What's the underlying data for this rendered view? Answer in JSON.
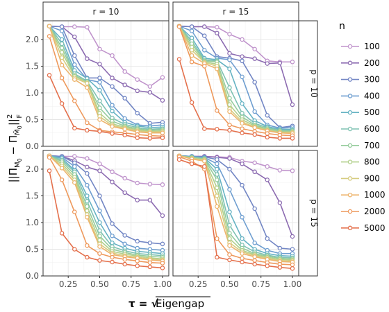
{
  "chart_data": {
    "type": "line",
    "xlabel": "τ = √Eigengap",
    "ylabel": "||Π_M0 − Π_M̂0||²_F",
    "legend_title": "n",
    "legend_position": "right",
    "grid": true,
    "facet_cols": [
      "r = 10",
      "r = 15"
    ],
    "facet_rows": [
      "p = 10",
      "p = 15"
    ],
    "x": [
      0.1,
      0.2,
      0.3,
      0.4,
      0.5,
      0.6,
      0.7,
      0.8,
      0.9,
      1.0
    ],
    "xticks": [
      0.25,
      0.5,
      0.75,
      1.0
    ],
    "xtick_labels": [
      "0.25",
      "0.50",
      "0.75",
      "1.00"
    ],
    "xlim": [
      0.05,
      1.05
    ],
    "yticks": [
      0.0,
      0.5,
      1.0,
      1.5,
      2.0
    ],
    "ytick_labels": [
      "0.0",
      "0.5",
      "1.0",
      "1.5",
      "2.0"
    ],
    "ylim": [
      0.0,
      2.35
    ],
    "series_names": [
      "100",
      "200",
      "300",
      "400",
      "500",
      "600",
      "700",
      "800",
      "900",
      "1000",
      "2000",
      "5000"
    ],
    "colors": [
      "#c094cc",
      "#8c6bb1",
      "#7286c4",
      "#6e9ed0",
      "#66b3c3",
      "#7fc2b2",
      "#95cc9c",
      "#b2d08c",
      "#d6cc80",
      "#edb46c",
      "#ee995c",
      "#e4704c"
    ],
    "panels": [
      {
        "row": "p = 10",
        "col": "r = 10",
        "series": [
          {
            "name": "100",
            "values": [
              2.25,
              2.24,
              2.24,
              2.23,
              1.82,
              1.7,
              1.4,
              1.25,
              1.12,
              1.29
            ]
          },
          {
            "name": "200",
            "values": [
              2.25,
              2.24,
              2.05,
              1.64,
              1.54,
              1.28,
              1.15,
              1.04,
              1.01,
              0.86
            ]
          },
          {
            "name": "300",
            "values": [
              2.25,
              2.24,
              1.7,
              1.28,
              1.28,
              1.12,
              0.9,
              0.62,
              0.43,
              0.45
            ]
          },
          {
            "name": "400",
            "values": [
              2.25,
              2.16,
              1.53,
              1.25,
              1.2,
              0.77,
              0.52,
              0.4,
              0.38,
              0.4
            ]
          },
          {
            "name": "500",
            "values": [
              2.25,
              2.0,
              1.42,
              1.27,
              1.05,
              0.66,
              0.45,
              0.38,
              0.35,
              0.36
            ]
          },
          {
            "name": "600",
            "values": [
              2.25,
              1.92,
              1.36,
              1.22,
              0.85,
              0.53,
              0.41,
              0.35,
              0.32,
              0.33
            ]
          },
          {
            "name": "700",
            "values": [
              2.25,
              1.84,
              1.33,
              1.2,
              0.72,
              0.47,
              0.38,
              0.33,
              0.3,
              0.31
            ]
          },
          {
            "name": "800",
            "values": [
              2.25,
              1.76,
              1.31,
              1.2,
              0.62,
              0.42,
              0.36,
              0.31,
              0.28,
              0.29
            ]
          },
          {
            "name": "900",
            "values": [
              2.25,
              1.66,
              1.28,
              1.18,
              0.56,
              0.39,
              0.34,
              0.29,
              0.27,
              0.27
            ]
          },
          {
            "name": "1000",
            "values": [
              2.25,
              1.52,
              1.25,
              1.1,
              0.5,
              0.37,
              0.32,
              0.27,
              0.25,
              0.25
            ]
          },
          {
            "name": "2000",
            "values": [
              2.06,
              1.28,
              0.85,
              0.44,
              0.3,
              0.27,
              0.25,
              0.22,
              0.2,
              0.19
            ]
          },
          {
            "name": "5000",
            "values": [
              1.33,
              0.8,
              0.34,
              0.3,
              0.28,
              0.24,
              0.21,
              0.16,
              0.15,
              0.16
            ]
          }
        ]
      },
      {
        "row": "p = 10",
        "col": "r = 15",
        "series": [
          {
            "name": "100",
            "values": [
              2.25,
              2.24,
              2.24,
              2.23,
              2.1,
              2.0,
              1.82,
              1.6,
              1.58,
              1.58
            ]
          },
          {
            "name": "200",
            "values": [
              2.25,
              2.24,
              2.24,
              2.12,
              1.74,
              1.68,
              1.64,
              1.55,
              1.56,
              0.78
            ]
          },
          {
            "name": "300",
            "values": [
              2.25,
              2.24,
              2.07,
              1.68,
              1.65,
              1.6,
              1.2,
              0.58,
              0.35,
              0.38
            ]
          },
          {
            "name": "400",
            "values": [
              2.25,
              2.16,
              1.8,
              1.65,
              1.62,
              1.3,
              0.65,
              0.4,
              0.34,
              0.35
            ]
          },
          {
            "name": "500",
            "values": [
              2.25,
              2.03,
              1.65,
              1.62,
              1.45,
              0.8,
              0.48,
              0.37,
              0.32,
              0.32
            ]
          },
          {
            "name": "600",
            "values": [
              2.25,
              1.97,
              1.62,
              1.6,
              1.1,
              0.62,
              0.43,
              0.35,
              0.3,
              0.3
            ]
          },
          {
            "name": "700",
            "values": [
              2.25,
              1.92,
              1.6,
              1.58,
              0.9,
              0.55,
              0.4,
              0.33,
              0.29,
              0.28
            ]
          },
          {
            "name": "800",
            "values": [
              2.25,
              1.86,
              1.58,
              1.54,
              0.78,
              0.5,
              0.38,
              0.31,
              0.27,
              0.27
            ]
          },
          {
            "name": "900",
            "values": [
              2.25,
              1.8,
              1.57,
              1.5,
              0.7,
              0.46,
              0.36,
              0.3,
              0.26,
              0.26
            ]
          },
          {
            "name": "1000",
            "values": [
              2.25,
              1.7,
              1.55,
              1.45,
              0.65,
              0.43,
              0.35,
              0.29,
              0.25,
              0.24
            ]
          },
          {
            "name": "2000",
            "values": [
              2.24,
              1.58,
              1.5,
              0.67,
              0.4,
              0.33,
              0.28,
              0.24,
              0.21,
              0.2
            ]
          },
          {
            "name": "5000",
            "values": [
              1.63,
              0.82,
              0.33,
              0.32,
              0.3,
              0.25,
              0.22,
              0.17,
              0.15,
              0.15
            ]
          }
        ]
      },
      {
        "row": "p = 15",
        "col": "r = 10",
        "series": [
          {
            "name": "100",
            "values": [
              2.25,
              2.24,
              2.24,
              2.2,
              2.1,
              1.95,
              1.83,
              1.74,
              1.72,
              1.71
            ]
          },
          {
            "name": "200",
            "values": [
              2.25,
              2.24,
              2.16,
              2.04,
              1.97,
              1.76,
              1.56,
              1.42,
              1.42,
              1.13
            ]
          },
          {
            "name": "300",
            "values": [
              2.25,
              2.24,
              2.12,
              1.92,
              1.5,
              0.98,
              0.76,
              0.65,
              0.62,
              0.6
            ]
          },
          {
            "name": "400",
            "values": [
              2.25,
              2.22,
              2.05,
              1.7,
              1.22,
              0.75,
              0.6,
              0.52,
              0.5,
              0.48
            ]
          },
          {
            "name": "500",
            "values": [
              2.25,
              2.2,
              1.98,
              1.5,
              1.0,
              0.62,
              0.52,
              0.46,
              0.44,
              0.42
            ]
          },
          {
            "name": "600",
            "values": [
              2.25,
              2.17,
              1.95,
              1.4,
              0.85,
              0.55,
              0.47,
              0.42,
              0.4,
              0.38
            ]
          },
          {
            "name": "700",
            "values": [
              2.25,
              2.14,
              1.9,
              1.3,
              0.75,
              0.5,
              0.44,
              0.39,
              0.37,
              0.35
            ]
          },
          {
            "name": "800",
            "values": [
              2.25,
              2.1,
              1.85,
              1.22,
              0.67,
              0.46,
              0.41,
              0.37,
              0.34,
              0.32
            ]
          },
          {
            "name": "900",
            "values": [
              2.25,
              2.06,
              1.8,
              1.15,
              0.6,
              0.43,
              0.38,
              0.35,
              0.32,
              0.3
            ]
          },
          {
            "name": "1000",
            "values": [
              2.25,
              2.02,
              1.75,
              1.1,
              0.55,
              0.4,
              0.36,
              0.33,
              0.3,
              0.28
            ]
          },
          {
            "name": "2000",
            "values": [
              2.22,
              1.8,
              1.2,
              0.57,
              0.42,
              0.35,
              0.31,
              0.28,
              0.25,
              0.24
            ]
          },
          {
            "name": "5000",
            "values": [
              1.97,
              0.8,
              0.5,
              0.35,
              0.29,
              0.26,
              0.22,
              0.19,
              0.17,
              0.15
            ]
          }
        ]
      },
      {
        "row": "p = 15",
        "col": "r = 15",
        "series": [
          {
            "name": "100",
            "values": [
              2.25,
              2.24,
              2.24,
              2.23,
              2.22,
              2.15,
              2.12,
              2.05,
              1.98,
              1.97
            ]
          },
          {
            "name": "200",
            "values": [
              2.25,
              2.24,
              2.24,
              2.22,
              2.2,
              2.1,
              1.95,
              1.8,
              1.37,
              0.74
            ]
          },
          {
            "name": "300",
            "values": [
              2.25,
              2.24,
              2.23,
              2.18,
              2.0,
              1.7,
              1.26,
              0.7,
              0.52,
              0.5
            ]
          },
          {
            "name": "400",
            "values": [
              2.25,
              2.24,
              2.22,
              2.1,
              1.62,
              1.1,
              0.62,
              0.48,
              0.42,
              0.42
            ]
          },
          {
            "name": "500",
            "values": [
              2.25,
              2.23,
              2.21,
              2.0,
              1.2,
              0.7,
              0.5,
              0.42,
              0.38,
              0.37
            ]
          },
          {
            "name": "600",
            "values": [
              2.25,
              2.22,
              2.2,
              1.9,
              0.95,
              0.58,
              0.45,
              0.39,
              0.35,
              0.34
            ]
          },
          {
            "name": "700",
            "values": [
              2.25,
              2.22,
              2.19,
              1.8,
              0.8,
              0.52,
              0.42,
              0.37,
              0.33,
              0.32
            ]
          },
          {
            "name": "800",
            "values": [
              2.25,
              2.21,
              2.18,
              1.65,
              0.7,
              0.48,
              0.4,
              0.35,
              0.31,
              0.3
            ]
          },
          {
            "name": "900",
            "values": [
              2.25,
              2.2,
              2.17,
              1.5,
              0.62,
              0.45,
              0.38,
              0.33,
              0.29,
              0.28
            ]
          },
          {
            "name": "1000",
            "values": [
              2.25,
              2.19,
              2.15,
              1.3,
              0.57,
              0.42,
              0.36,
              0.31,
              0.27,
              0.26
            ]
          },
          {
            "name": "2000",
            "values": [
              2.23,
              2.15,
              2.0,
              0.7,
              0.4,
              0.33,
              0.29,
              0.25,
              0.22,
              0.21
            ]
          },
          {
            "name": "5000",
            "values": [
              2.18,
              2.1,
              2.05,
              0.35,
              0.3,
              0.26,
              0.22,
              0.19,
              0.16,
              0.14
            ]
          }
        ]
      }
    ]
  }
}
